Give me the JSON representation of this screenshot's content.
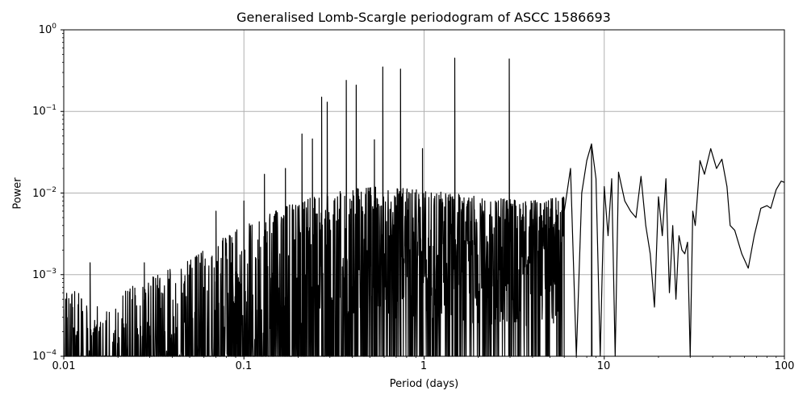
{
  "chart_data": {
    "type": "line",
    "title": "Generalised Lomb-Scargle periodogram of ASCC 1586693",
    "xlabel": "Period (days)",
    "ylabel": "Power",
    "xscale": "log",
    "yscale": "log",
    "xlim": [
      0.01,
      100
    ],
    "ylim": [
      0.0001,
      1
    ],
    "grid": true,
    "line_color": "#000000",
    "grid_color": "#b0b0b0",
    "x_ticks": [
      {
        "value": 0.01,
        "label": "0.01"
      },
      {
        "value": 0.1,
        "label": "0.1"
      },
      {
        "value": 1,
        "label": "1"
      },
      {
        "value": 10,
        "label": "10"
      },
      {
        "value": 100,
        "label": "100"
      }
    ],
    "y_ticks": [
      {
        "value": 1,
        "base": "10",
        "exp": "0"
      },
      {
        "value": 0.1,
        "base": "10",
        "exp": "−1"
      },
      {
        "value": 0.01,
        "base": "10",
        "exp": "−2"
      },
      {
        "value": 0.001,
        "base": "10",
        "exp": "−3"
      },
      {
        "value": 0.0001,
        "base": "10",
        "exp": "−4"
      }
    ],
    "noise_envelope": [
      {
        "period": 0.01,
        "power": 0.0007
      },
      {
        "period": 0.012,
        "power": 0.0006
      },
      {
        "period": 0.015,
        "power": 0.0004
      },
      {
        "period": 0.02,
        "power": 0.0006
      },
      {
        "period": 0.03,
        "power": 0.0009
      },
      {
        "period": 0.05,
        "power": 0.0015
      },
      {
        "period": 0.07,
        "power": 0.0025
      },
      {
        "period": 0.1,
        "power": 0.004
      },
      {
        "period": 0.15,
        "power": 0.006
      },
      {
        "period": 0.2,
        "power": 0.008
      },
      {
        "period": 0.3,
        "power": 0.01
      },
      {
        "period": 0.5,
        "power": 0.012
      },
      {
        "period": 1,
        "power": 0.011
      },
      {
        "period": 2,
        "power": 0.009
      },
      {
        "period": 4,
        "power": 0.008
      },
      {
        "period": 6,
        "power": 0.009
      }
    ],
    "peaks": [
      {
        "period": 0.014,
        "power": 0.0014
      },
      {
        "period": 0.028,
        "power": 0.0014
      },
      {
        "period": 0.07,
        "power": 0.006
      },
      {
        "period": 0.1,
        "power": 0.008
      },
      {
        "period": 0.13,
        "power": 0.017
      },
      {
        "period": 0.17,
        "power": 0.02
      },
      {
        "period": 0.21,
        "power": 0.053
      },
      {
        "period": 0.24,
        "power": 0.046
      },
      {
        "period": 0.27,
        "power": 0.15
      },
      {
        "period": 0.29,
        "power": 0.13
      },
      {
        "period": 0.37,
        "power": 0.24
      },
      {
        "period": 0.42,
        "power": 0.21
      },
      {
        "period": 0.53,
        "power": 0.045
      },
      {
        "period": 0.59,
        "power": 0.35
      },
      {
        "period": 0.74,
        "power": 0.33
      },
      {
        "period": 0.98,
        "power": 0.035
      },
      {
        "period": 1.48,
        "power": 0.45
      },
      {
        "period": 2.97,
        "power": 0.44
      },
      {
        "period": 8.5,
        "power": 0.04
      }
    ],
    "smooth_tail": [
      {
        "period": 6.0,
        "power": 0.006
      },
      {
        "period": 6.5,
        "power": 0.02
      },
      {
        "period": 7.0,
        "power": 0.0001
      },
      {
        "period": 7.5,
        "power": 0.01
      },
      {
        "period": 8.0,
        "power": 0.025
      },
      {
        "period": 8.5,
        "power": 0.04
      },
      {
        "period": 9.0,
        "power": 0.015
      },
      {
        "period": 9.5,
        "power": 0.0001
      },
      {
        "period": 10.0,
        "power": 0.012
      },
      {
        "period": 10.5,
        "power": 0.003
      },
      {
        "period": 11.0,
        "power": 0.015
      },
      {
        "period": 11.5,
        "power": 0.0001
      },
      {
        "period": 12.0,
        "power": 0.018
      },
      {
        "period": 13.0,
        "power": 0.008
      },
      {
        "period": 14.0,
        "power": 0.006
      },
      {
        "period": 15.0,
        "power": 0.005
      },
      {
        "period": 16.0,
        "power": 0.016
      },
      {
        "period": 17.0,
        "power": 0.004
      },
      {
        "period": 18.0,
        "power": 0.0018
      },
      {
        "period": 19.0,
        "power": 0.0004
      },
      {
        "period": 20.0,
        "power": 0.009
      },
      {
        "period": 21.0,
        "power": 0.003
      },
      {
        "period": 22.0,
        "power": 0.015
      },
      {
        "period": 23.0,
        "power": 0.0006
      },
      {
        "period": 24.0,
        "power": 0.004
      },
      {
        "period": 25.0,
        "power": 0.0005
      },
      {
        "period": 26.0,
        "power": 0.003
      },
      {
        "period": 27.0,
        "power": 0.002
      },
      {
        "period": 28.0,
        "power": 0.0018
      },
      {
        "period": 29.0,
        "power": 0.0025
      },
      {
        "period": 30.0,
        "power": 0.0001
      },
      {
        "period": 31.0,
        "power": 0.006
      },
      {
        "period": 32.0,
        "power": 0.004
      },
      {
        "period": 34.0,
        "power": 0.025
      },
      {
        "period": 36.0,
        "power": 0.017
      },
      {
        "period": 39.0,
        "power": 0.035
      },
      {
        "period": 42.0,
        "power": 0.02
      },
      {
        "period": 45.0,
        "power": 0.026
      },
      {
        "period": 48.0,
        "power": 0.012
      },
      {
        "period": 50.0,
        "power": 0.004
      },
      {
        "period": 53.0,
        "power": 0.0035
      },
      {
        "period": 58.0,
        "power": 0.0018
      },
      {
        "period": 63.0,
        "power": 0.0012
      },
      {
        "period": 68.0,
        "power": 0.003
      },
      {
        "period": 74.0,
        "power": 0.0065
      },
      {
        "period": 80.0,
        "power": 0.007
      },
      {
        "period": 84.0,
        "power": 0.0065
      },
      {
        "period": 90.0,
        "power": 0.011
      },
      {
        "period": 96.0,
        "power": 0.014
      },
      {
        "period": 100.0,
        "power": 0.0135
      }
    ]
  }
}
